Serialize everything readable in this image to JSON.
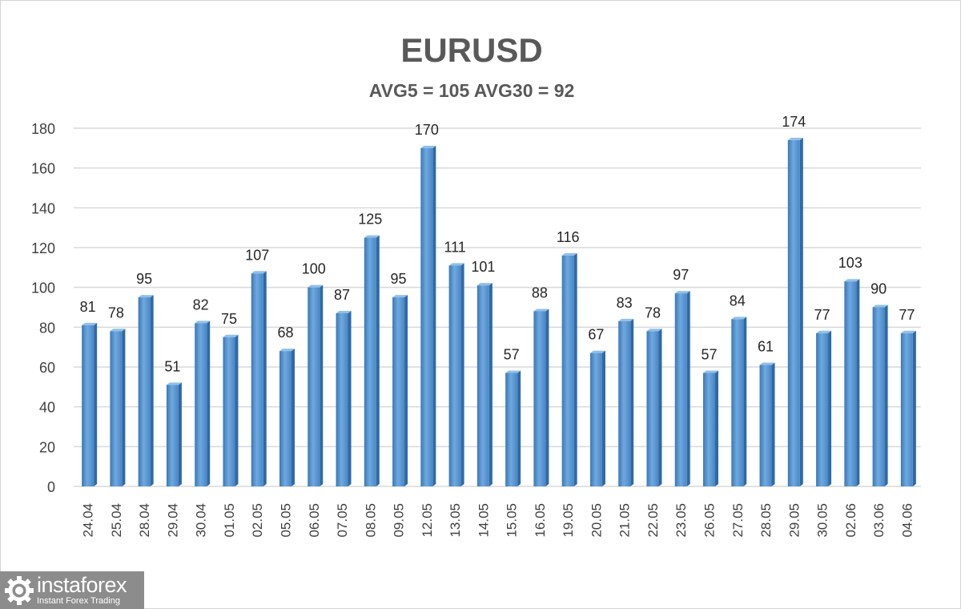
{
  "chart_data": {
    "type": "bar",
    "title": "EURUSD",
    "subtitle": "AVG5 = 105 AVG30 = 92",
    "xlabel": "",
    "ylabel": "",
    "ylim": [
      0,
      180
    ],
    "yticks": [
      0,
      20,
      40,
      60,
      80,
      100,
      120,
      140,
      160,
      180
    ],
    "grid": true,
    "legend": "none",
    "bar_color": "#5b9bd5",
    "categories": [
      "24.04",
      "25.04",
      "28.04",
      "29.04",
      "30.04",
      "01.05",
      "02.05",
      "05.05",
      "06.05",
      "07.05",
      "08.05",
      "09.05",
      "12.05",
      "13.05",
      "14.05",
      "15.05",
      "16.05",
      "19.05",
      "20.05",
      "21.05",
      "22.05",
      "23.05",
      "26.05",
      "27.05",
      "28.05",
      "29.05",
      "30.05",
      "02.06",
      "03.06",
      "04.06"
    ],
    "values": [
      81,
      78,
      95,
      51,
      82,
      75,
      107,
      68,
      100,
      87,
      125,
      95,
      170,
      111,
      101,
      57,
      88,
      116,
      67,
      83,
      78,
      97,
      57,
      84,
      61,
      174,
      77,
      103,
      90,
      77
    ]
  },
  "watermark": {
    "name": "instaforex",
    "tagline": "Instant Forex Trading"
  }
}
